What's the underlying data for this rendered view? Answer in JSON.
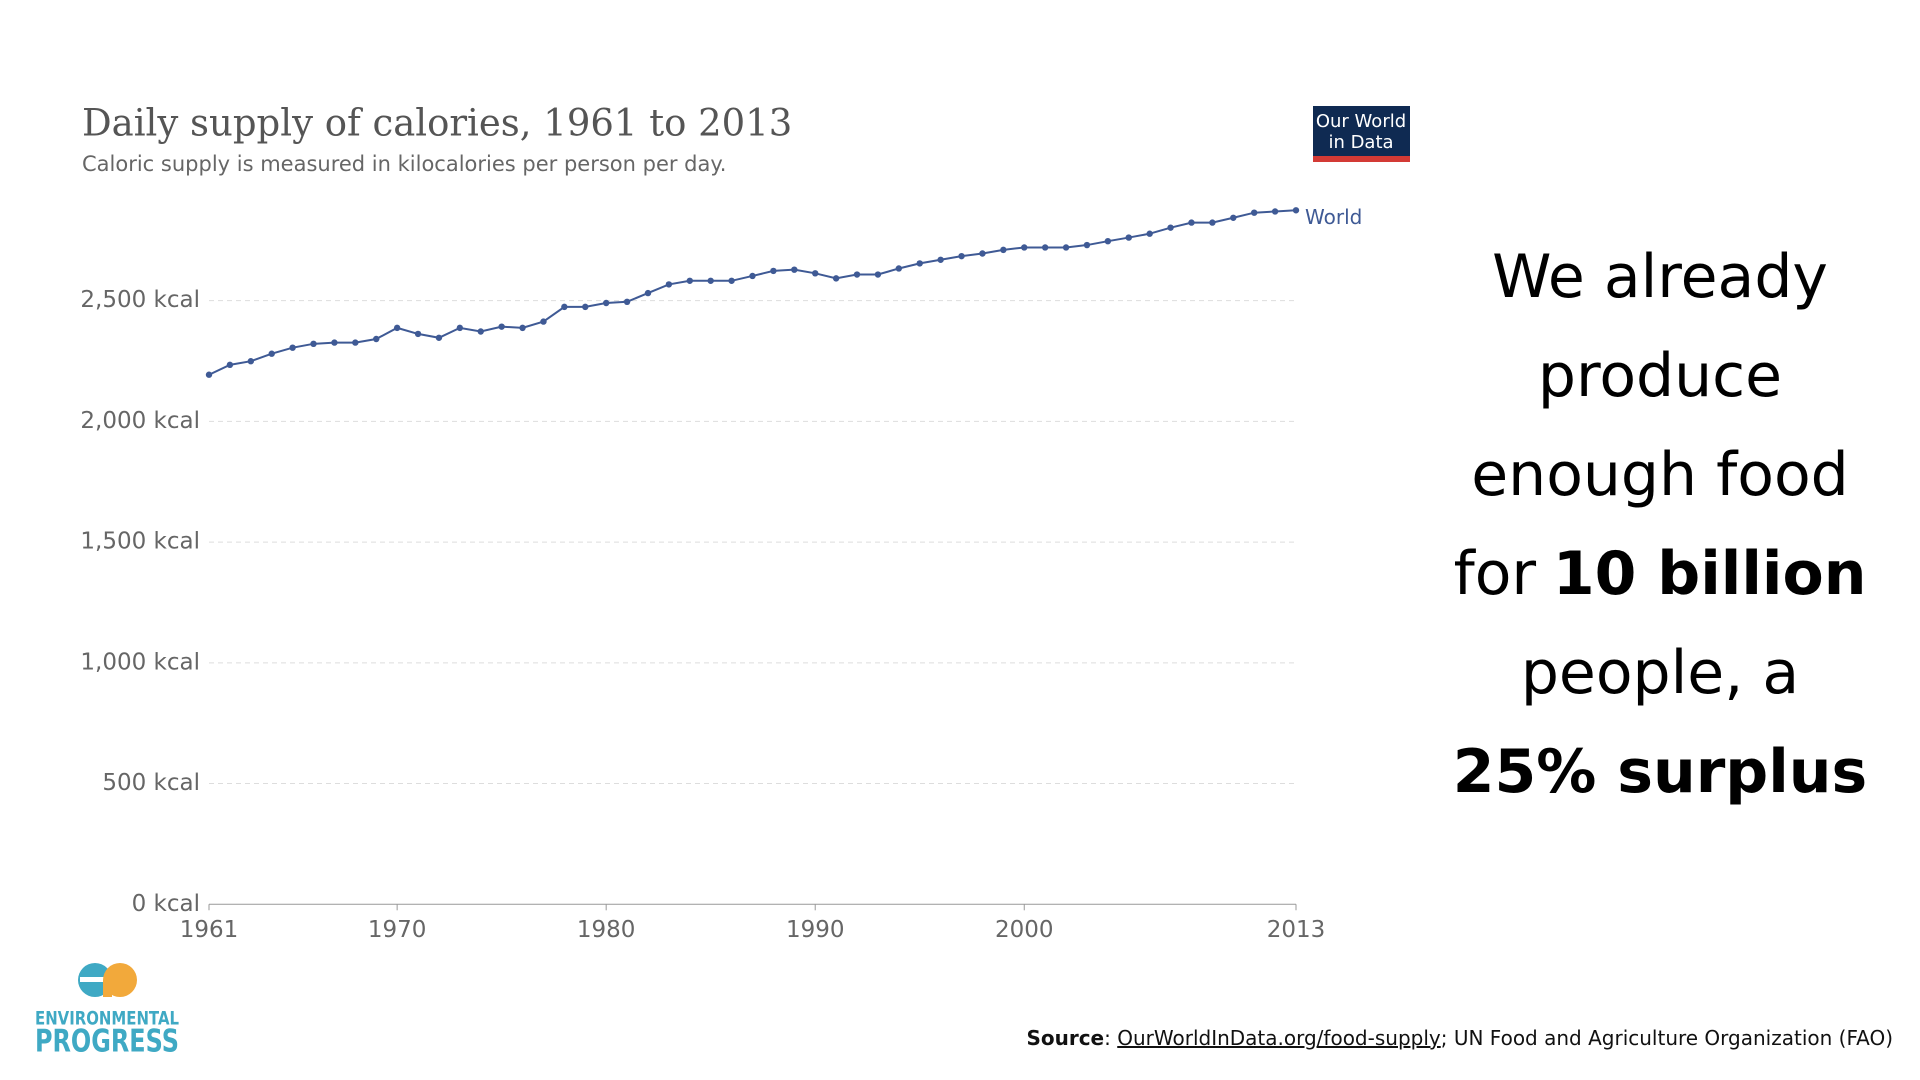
{
  "chart_data": {
    "type": "line",
    "title": "Daily supply of calories, 1961 to 2013",
    "subtitle": "Caloric supply is measured in kilocalories per person per day.",
    "x": [
      1961,
      1962,
      1963,
      1964,
      1965,
      1966,
      1967,
      1968,
      1969,
      1970,
      1971,
      1972,
      1973,
      1974,
      1975,
      1976,
      1977,
      1978,
      1979,
      1980,
      1981,
      1982,
      1983,
      1984,
      1985,
      1986,
      1987,
      1988,
      1989,
      1990,
      1991,
      1992,
      1993,
      1994,
      1995,
      1996,
      1997,
      1998,
      1999,
      2000,
      2001,
      2002,
      2003,
      2004,
      2005,
      2006,
      2007,
      2008,
      2009,
      2010,
      2011,
      2012,
      2013
    ],
    "series": [
      {
        "name": "World",
        "color": "#3f5a95",
        "values": [
          2193,
          2234,
          2249,
          2280,
          2305,
          2321,
          2326,
          2326,
          2341,
          2387,
          2362,
          2346,
          2387,
          2372,
          2392,
          2387,
          2413,
          2474,
          2474,
          2490,
          2495,
          2531,
          2567,
          2582,
          2582,
          2582,
          2602,
          2623,
          2628,
          2613,
          2592,
          2608,
          2608,
          2633,
          2654,
          2669,
          2684,
          2695,
          2710,
          2720,
          2720,
          2720,
          2730,
          2746,
          2761,
          2777,
          2802,
          2823,
          2823,
          2843,
          2864,
          2869,
          2874
        ]
      }
    ],
    "xlim": [
      1961,
      2013
    ],
    "xticks": [
      1961,
      1970,
      1980,
      1990,
      2000,
      2013
    ],
    "ylim": [
      0,
      2900
    ],
    "yticks": [
      {
        "value": 0,
        "label": "0 kcal"
      },
      {
        "value": 500,
        "label": "500 kcal"
      },
      {
        "value": 1000,
        "label": "1,000 kcal"
      },
      {
        "value": 1500,
        "label": "1,500 kcal"
      },
      {
        "value": 2000,
        "label": "2,000 kcal"
      },
      {
        "value": 2500,
        "label": "2,500 kcal"
      }
    ],
    "grid": true
  },
  "badge": [
    "Our World",
    "in Data"
  ],
  "headline": [
    [
      {
        "text": "We already"
      }
    ],
    [
      {
        "text": "produce"
      }
    ],
    [
      {
        "text": "enough food"
      }
    ],
    [
      {
        "text": "for"
      },
      {
        "text": "10 billion",
        "bold": true
      }
    ],
    [
      {
        "text": "people, a"
      }
    ],
    [
      {
        "text": "25% surplus",
        "bold": true
      }
    ]
  ],
  "source": [
    "Source",
    ": ",
    "OurWorldInData.org/food-supply",
    "; UN Food and Agriculture Organization (FAO)"
  ],
  "logo": [
    "ENVIRONMENTAL",
    "PROGRESS"
  ]
}
